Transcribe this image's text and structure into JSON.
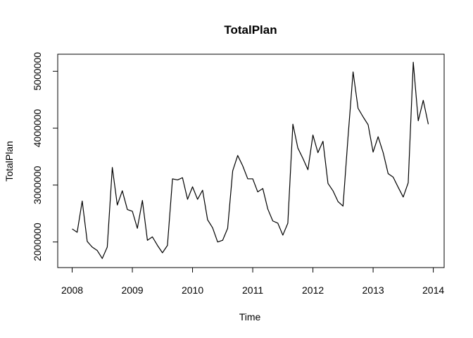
{
  "chart_data": {
    "type": "line",
    "title": "TotalPlan",
    "xlabel": "Time",
    "ylabel": "TotalPlan",
    "xlim": [
      2007.76,
      2014.18
    ],
    "ylim": [
      1550000,
      5300000
    ],
    "xticks": [
      2008,
      2009,
      2010,
      2011,
      2012,
      2013,
      2014
    ],
    "xtick_labels": [
      "2008",
      "2009",
      "2010",
      "2011",
      "2012",
      "2013",
      "2014"
    ],
    "yticks": [
      2000000,
      3000000,
      4000000,
      5000000
    ],
    "ytick_labels": [
      "2000000",
      "3000000",
      "4000000",
      "5000000"
    ],
    "grid": false,
    "series": [
      {
        "x": [
          2008.0,
          2008.083,
          2008.167,
          2008.25,
          2008.333,
          2008.417,
          2008.5,
          2008.583,
          2008.667,
          2008.75,
          2008.833,
          2008.917,
          2009.0,
          2009.083,
          2009.167,
          2009.25,
          2009.333,
          2009.417,
          2009.5,
          2009.583,
          2009.667,
          2009.75,
          2009.833,
          2009.917,
          2010.0,
          2010.083,
          2010.167,
          2010.25,
          2010.333,
          2010.417,
          2010.5,
          2010.583,
          2010.667,
          2010.75,
          2010.833,
          2010.917,
          2011.0,
          2011.083,
          2011.167,
          2011.25,
          2011.333,
          2011.417,
          2011.5,
          2011.583,
          2011.667,
          2011.75,
          2011.833,
          2011.917,
          2012.0,
          2012.083,
          2012.167,
          2012.25,
          2012.333,
          2012.417,
          2012.5,
          2012.583,
          2012.667,
          2012.75,
          2012.833,
          2012.917,
          2013.0,
          2013.083,
          2013.167,
          2013.25,
          2013.333,
          2013.417,
          2013.5,
          2013.583,
          2013.667,
          2013.75,
          2013.833,
          2013.917
        ],
        "values": [
          2230000,
          2170000,
          2720000,
          2010000,
          1910000,
          1850000,
          1710000,
          1910000,
          3310000,
          2650000,
          2900000,
          2570000,
          2540000,
          2240000,
          2730000,
          2030000,
          2090000,
          1940000,
          1810000,
          1940000,
          3110000,
          3090000,
          3130000,
          2750000,
          2970000,
          2750000,
          2910000,
          2390000,
          2250000,
          2000000,
          2030000,
          2240000,
          3250000,
          3520000,
          3340000,
          3110000,
          3110000,
          2880000,
          2940000,
          2580000,
          2370000,
          2330000,
          2120000,
          2330000,
          4070000,
          3650000,
          3470000,
          3270000,
          3880000,
          3570000,
          3770000,
          3030000,
          2900000,
          2710000,
          2630000,
          3840000,
          4990000,
          4350000,
          4200000,
          4060000,
          3580000,
          3850000,
          3570000,
          3200000,
          3140000,
          2960000,
          2790000,
          3040000,
          5160000,
          4130000,
          4490000,
          4070000
        ]
      }
    ]
  }
}
